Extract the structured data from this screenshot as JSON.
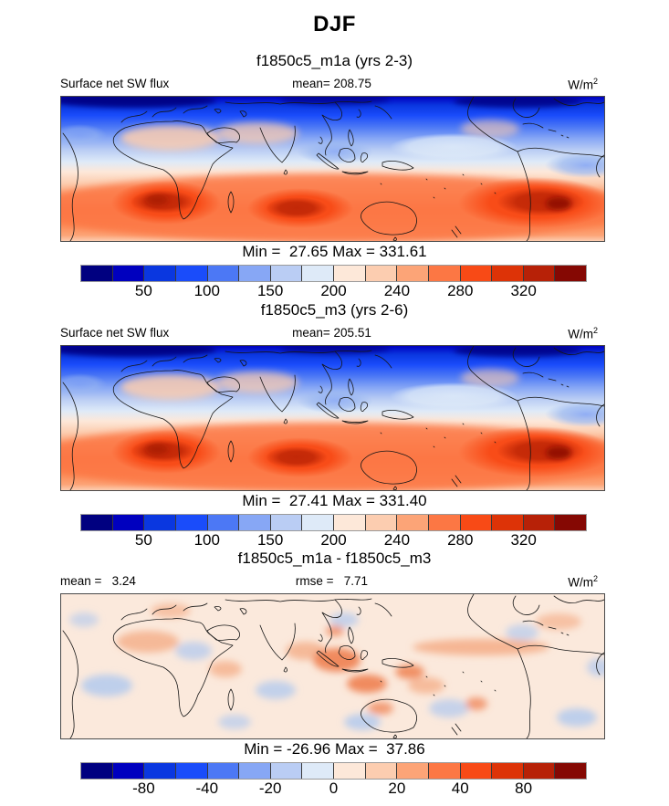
{
  "title": "DJF",
  "unit": {
    "base": "W/m",
    "exp": "2"
  },
  "colorbar": {
    "n_bins": 16,
    "tick_positions": [
      2,
      4,
      6,
      8,
      10,
      12,
      14
    ],
    "colors": [
      "#000080",
      "#0000BF",
      "#0A37E0",
      "#1A4CFA",
      "#4C78F5",
      "#87A7F5",
      "#BACDF4",
      "#DEEAF8",
      "#FDE8D9",
      "#FCCDB0",
      "#FCA477",
      "#FC7744",
      "#F84A16",
      "#DD3307",
      "#B72107",
      "#850803"
    ]
  },
  "panels": [
    {
      "subtitle": "f1850c5_m1a (yrs 2-3)",
      "label_left": "Surface net SW flux",
      "stat_center": "mean= 208.75",
      "minmax": "Min =  27.65 Max = 331.61",
      "ticks": [
        "50",
        "100",
        "150",
        "200",
        "240",
        "280",
        "320"
      ]
    },
    {
      "subtitle": "f1850c5_m3 (yrs 2-6)",
      "label_left": "Surface net SW flux",
      "stat_center": "mean= 205.51",
      "minmax": "Min =  27.41 Max = 331.40",
      "ticks": [
        "50",
        "100",
        "150",
        "200",
        "240",
        "280",
        "320"
      ]
    },
    {
      "subtitle": "f1850c5_m1a - f1850c5_m3",
      "label_left": "mean =   3.24",
      "stat_center": "rmse =   7.71",
      "minmax": "Min = -26.96 Max =  37.86",
      "ticks": [
        "-80",
        "-40",
        "-20",
        "0",
        "20",
        "40",
        "80"
      ]
    }
  ],
  "chart_data": [
    {
      "type": "heatmap",
      "subtype": "global-lat-lon-filled-contour-map",
      "season": "DJF",
      "title": "f1850c5_m1a (yrs 2-3)",
      "variable": "Surface net SW flux",
      "units": "W/m^2",
      "mean": 208.75,
      "min": 27.65,
      "max": 331.61,
      "colorbar_ticks": [
        50,
        100,
        150,
        200,
        240,
        280,
        320
      ],
      "n_color_bins": 16,
      "palette_low_to_high": [
        "#000080",
        "#0000BF",
        "#0A37E0",
        "#1A4CFA",
        "#4C78F5",
        "#87A7F5",
        "#BACDF4",
        "#DEEAF8",
        "#FDE8D9",
        "#FCCDB0",
        "#FCA477",
        "#FC7744",
        "#F84A16",
        "#DD3307",
        "#B72107",
        "#850803"
      ],
      "legend_position": "bottom",
      "description": "Low (blue) values over winter northern hemisphere, high (red) maxima over southern subtropical oceans (South Atlantic, South Indian, Southeast Pacific)"
    },
    {
      "type": "heatmap",
      "subtype": "global-lat-lon-filled-contour-map",
      "season": "DJF",
      "title": "f1850c5_m3 (yrs 2-6)",
      "variable": "Surface net SW flux",
      "units": "W/m^2",
      "mean": 205.51,
      "min": 27.41,
      "max": 331.4,
      "colorbar_ticks": [
        50,
        100,
        150,
        200,
        240,
        280,
        320
      ],
      "n_color_bins": 16,
      "legend_position": "bottom"
    },
    {
      "type": "heatmap",
      "subtype": "difference-map",
      "season": "DJF",
      "title": "f1850c5_m1a - f1850c5_m3",
      "variable": "Surface net SW flux difference",
      "units": "W/m^2",
      "mean": 3.24,
      "rmse": 7.71,
      "min": -26.96,
      "max": 37.86,
      "colorbar_ticks": [
        -80,
        -40,
        -20,
        0,
        20,
        40,
        80
      ],
      "n_color_bins": 16,
      "legend_position": "bottom",
      "description": "Near-zero pale field with weak positive (light red) anomalies over the Maritime Continent and tropical west Pacific, scattered weak negative (light blue) patches"
    }
  ]
}
